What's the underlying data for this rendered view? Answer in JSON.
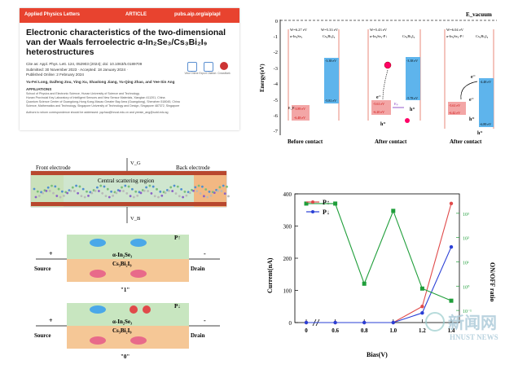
{
  "paper": {
    "journal": "Applied Physics Letters",
    "article_type": "ARTICLE",
    "url": "pubs.aip.org/aip/apl",
    "title_line1": "Electronic characteristics of the two-dimensional",
    "title_line2": "van der Waals ferroelectric α-In₂Se₃/Cs₃Bi₂I₉",
    "title_line3": "heterostructures",
    "cite": "Cite as: Appl. Phys. Lett. 124, 052903 (2024); doi: 10.1063/5.0189709",
    "submitted": "Submitted: 30 November 2023 · Accepted: 18 January 2024 ·",
    "published": "Published Online: 2 February 2024",
    "authors": "Yu-Fei Long, Daifeng Zou, Ying Xu, Shaolong Jiang, Yu-Qing Zhao, and Yee-Sin Ang",
    "affiliations_heading": "AFFILIATIONS",
    "affiliation_1": "School of Physics and Electronic Science, Hunan University of Science and Technology",
    "affiliation_2": "Hunan Provincial Key Laboratory of Intelligent Sensors and New Sensor Materials, Xiangtan 411201, China",
    "affiliation_3": "Quantum Science Center of Guangdong-Hong Kong-Macao Greater Bay Area (Guangdong), Shenzhen 518045, China",
    "affiliation_4": "Science, Mathematics and Technology, Singapore University of Technology and Design, Singapore 487372, Singapore",
    "correspondence": "Authors to whom correspondence should be addressed: yqzhao@hnust.edu.cn and yeesin_ang@sutd.edu.sg",
    "icons": [
      "view-online-icon",
      "export-citation-icon",
      "crossmark-icon"
    ],
    "icon_labels": [
      "View Online",
      "Export Citation",
      "CrossMark"
    ],
    "brand_color": "#e8432f"
  },
  "band": {
    "y_axis_label": "Energy(eV)",
    "y_ticks": [
      "0",
      "-1",
      "-2",
      "-3",
      "-4",
      "-5",
      "-6",
      "-7"
    ],
    "vacuum_label": "E_vacuum",
    "material_a": "α-In₂Se₃",
    "material_b": "Cs₃Bi₂I₉",
    "material_a_p": "α-In₂Se₃-P↓",
    "material_a_p2": "α-In₂Se₃-P↑",
    "w_a": "W=6.27 eV",
    "w_b": "W=5.33 eV",
    "w_a2": "W=5.43 eV",
    "w_a3": "W=6.04 eV",
    "before": {
      "vb_a": "-3.89 eV",
      "cb_a": "-6.48 eV",
      "cb_b": "-3.38 eV",
      "vb_b": "-5.81 eV"
    },
    "after": {
      "cb_a": "-5.61 eV",
      "vb_a": "-6.20 eV",
      "cb_b": "-3.38 eV",
      "vb_b": "-5.78 eV",
      "offset": "1.38"
    },
    "after2": {
      "cb_a": "-5.61 eV",
      "vb_a": "-6.42 eV",
      "cb_b": "-4.48 eV",
      "vb_b": "-6.89 eV"
    },
    "e_label": "e⁻",
    "h_label": "h⁺",
    "eg_label": "Eₚ",
    "ec_label": "E꜀",
    "ev_label": "Eᵥ",
    "ef_label": "E_F",
    "panel_labels": [
      "Before contact",
      "After contact",
      "After contact"
    ],
    "colors": {
      "a": "#f3a6a6",
      "b": "#5eb4ec",
      "line": "#e36b5a"
    }
  },
  "device": {
    "front_label": "Front electrode",
    "back_label": "Back electrode",
    "center_label": "Central scattering region",
    "vg_label": "V_G",
    "vb_label": "V_B",
    "cell1": {
      "polarization": "P↑",
      "material_a": "α-In₂Se₃",
      "material_b": "Cs₃Bi₂I₉",
      "source": "Source",
      "drain": "Drain",
      "plus": "+",
      "minus": "-",
      "state": "\"1\""
    },
    "cell0": {
      "polarization": "P↓",
      "material_a": "α-In₂Se₃",
      "material_b": "Cs₃Bi₂I₉",
      "source": "Source",
      "drain": "Drain",
      "plus": "+",
      "minus": "-",
      "state": "\"0\""
    },
    "colors": {
      "top": "#c8e6c0",
      "bottom": "#f5c796",
      "electrode": "#f5b37a"
    }
  },
  "chart_data": {
    "type": "line",
    "x": [
      0,
      0.6,
      0.8,
      1.0,
      1.2,
      1.4
    ],
    "x_ticks": [
      "0",
      "0.6",
      "0.8",
      "1.0",
      "1.2",
      "1.4"
    ],
    "xlabel": "Bias(V)",
    "ylabel": "Current(nA)",
    "ylabel_right": "ON/OFF ratio",
    "ylim": [
      0,
      400
    ],
    "y_ticks": [
      "0",
      "100",
      "200",
      "300",
      "400"
    ],
    "y2_ticks": [
      "10⁻¹",
      "10⁰",
      "10¹",
      "10²",
      "10³"
    ],
    "y2_log_range": [
      -1.5,
      3.8
    ],
    "series": [
      {
        "name": "P↑",
        "color": "#e04a4a",
        "values": [
          0,
          0,
          0,
          0,
          50,
          370
        ]
      },
      {
        "name": "P↓",
        "color": "#2a3fd6",
        "values": [
          0,
          0,
          0,
          0,
          30,
          235
        ]
      },
      {
        "name": "",
        "color": "#1f9e3a",
        "axis": "right",
        "values": [
          3.4,
          3.4,
          0.1,
          3.1,
          -0.1,
          -0.6
        ]
      }
    ],
    "legend_position": "top-left"
  },
  "watermark": {
    "cn": "新闻网",
    "en": "HNUST NEWS"
  }
}
